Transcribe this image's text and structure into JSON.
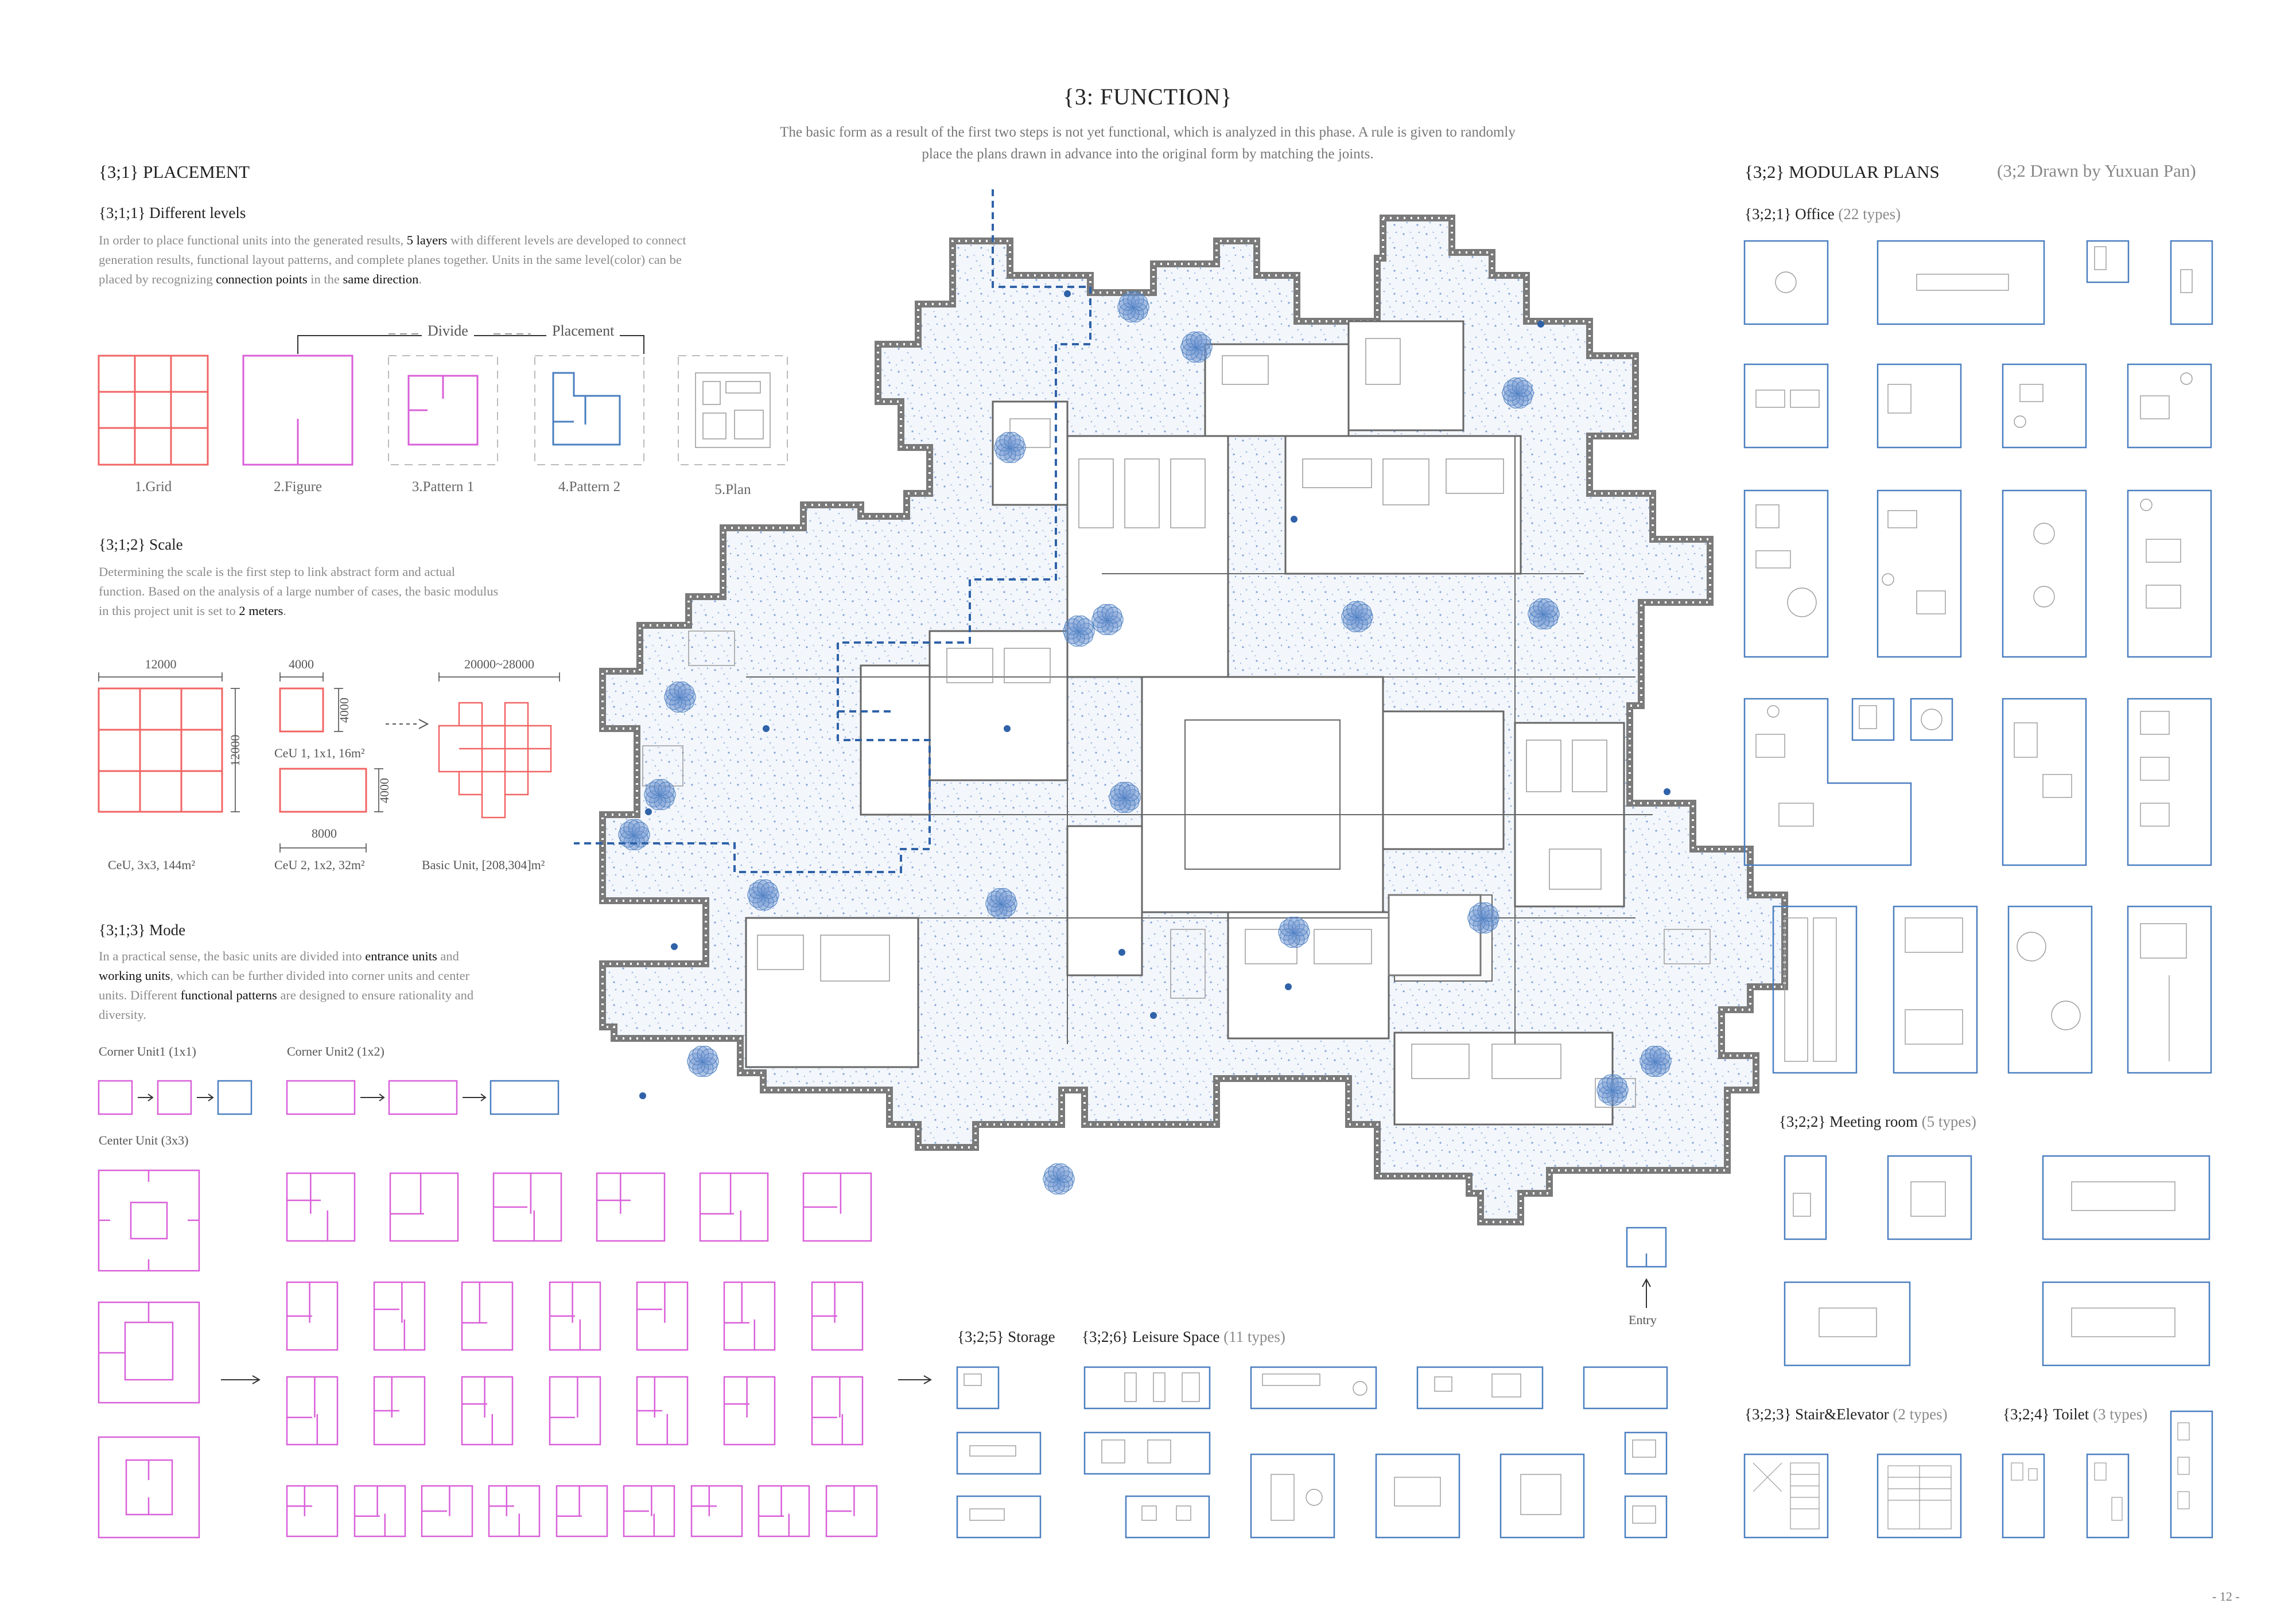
{
  "title": "{3: FUNCTION}",
  "intro": {
    "line1": "The basic form as a result of the first two steps is not yet functional, which is analyzed in this phase. A rule is given to randomly",
    "line2": "place the plans drawn in advance into the original form by matching the joints."
  },
  "placement": {
    "heading": "{3;1} PLACEMENT",
    "levels": {
      "heading": "{3;1;1} Different levels",
      "p_a": "In order to place functional units into the generated results, ",
      "p_b": "5 layers",
      "p_c": " with different levels are developed to connect",
      "p_d": "generation results, functional layout patterns, and complete planes together. Units in the same level(color) can be",
      "p_e": "placed by recognizing ",
      "p_f": "connection points",
      "p_g": " in the ",
      "p_h": "same direction",
      "p_i": ".",
      "divide": "Divide",
      "placement": "Placement",
      "steps": [
        "1.Grid",
        "2.Figure",
        "3.Pattern 1",
        "4.Pattern 2",
        "5.Plan"
      ]
    },
    "scale": {
      "heading": "{3;1;2} Scale",
      "line1": "Determining the scale is the first step to link abstract form and actual",
      "line2": "function. Based on the analysis of a large number of cases, the basic modulus",
      "line3a": "in this project unit is set to ",
      "line3b": "2 meters",
      "line3c": ".",
      "dim_12000_top": "12000",
      "dim_12000_side": "12000",
      "dim_4000_top": "4000",
      "dim_4000_side": "4000",
      "dim_4000_side2": "4000",
      "dim_8000": "8000",
      "dim_range": "20000~28000",
      "ceu": "CeU, 3x3, 144m²",
      "ceu1": "CeU 1, 1x1, 16m²",
      "ceu2": "CeU 2, 1x2, 32m²",
      "basic": "Basic Unit, [208,304]m²"
    },
    "mode": {
      "heading": "{3;1;3} Mode",
      "l1a": "In a practical sense, the basic units are divided into ",
      "l1b": "entrance units",
      "l1c": " and",
      "l2a": "working units",
      "l2b": ", which can be further divided into corner units and center",
      "l3a": "units. Different ",
      "l3b": "functional patterns",
      "l3c": " are designed to ensure rationality and",
      "l4": "diversity.",
      "corner1": "Corner Unit1 (1x1)",
      "corner2": "Corner Unit2 (1x2)",
      "center": "Center Unit (3x3)"
    }
  },
  "modular": {
    "heading": "{3;2} MODULAR PLANS",
    "credit": "(3;2 Drawn by Yuxuan Pan)",
    "office": {
      "label": "{3;2;1} Office",
      "count": "(22 types)"
    },
    "meeting": {
      "label": "{3;2;2} Meeting room",
      "count": "(5 types)"
    },
    "stair": {
      "label": "{3;2;3} Stair&Elevator",
      "count": "(2 types)"
    },
    "toilet": {
      "label": "{3;2;4} Toilet",
      "count": "(3 types)"
    },
    "storage": {
      "label": "{3;2;5} Storage"
    },
    "leisure": {
      "label": "{3;2;6} Leisure Space",
      "count": "(11 types)"
    }
  },
  "entry": "Entry",
  "page_number": "- 12 -",
  "colors": {
    "red": "#f26464",
    "magenta": "#d95fd9",
    "blue": "#4a7fc0",
    "gray_plan": "#8a8a8a",
    "dash_blue": "#2f62a8",
    "dot_blue": "#6f96d0"
  }
}
